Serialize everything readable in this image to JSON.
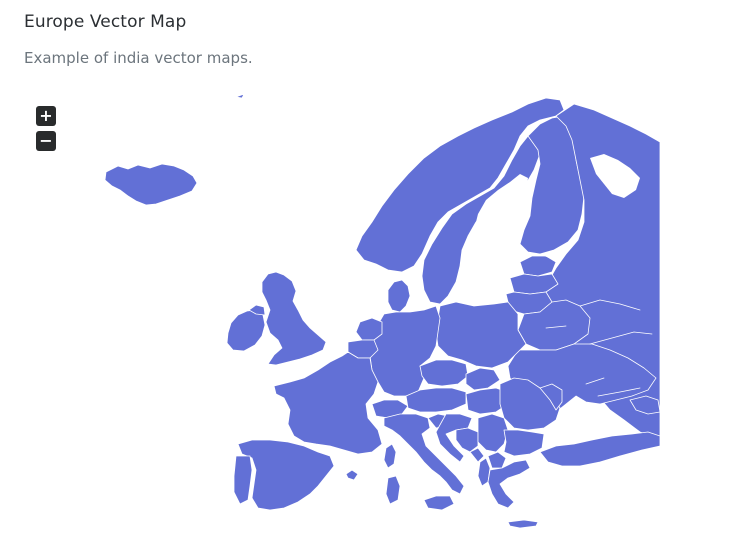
{
  "header": {
    "title": "Europe Vector Map",
    "subtitle": "Example of india vector maps."
  },
  "zoom": {
    "in_label": "+",
    "out_label": "−"
  },
  "map": {
    "region": "Europe",
    "fill_color": "#6270d6",
    "border_color": "#ffffff"
  }
}
